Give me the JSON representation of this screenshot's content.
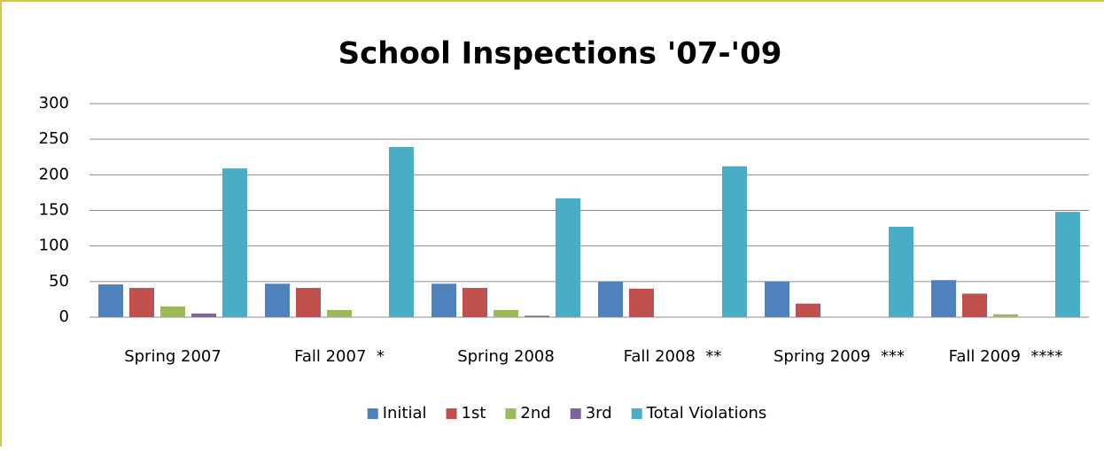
{
  "chart_data": {
    "type": "bar",
    "title": "School Inspections '07-'09",
    "categories": [
      "Spring 2007",
      "Fall 2007  *",
      "Spring 2008",
      "Fall 2008  **",
      "Spring 2009  ***",
      "Fall 2009  ****"
    ],
    "series": [
      {
        "name": "Initial",
        "color": "#4f81bd",
        "values": [
          46,
          47,
          47,
          50,
          50,
          52
        ]
      },
      {
        "name": "1st",
        "color": "#c0504d",
        "values": [
          41,
          41,
          41,
          40,
          19,
          33
        ]
      },
      {
        "name": "2nd",
        "color": "#9bbb59",
        "values": [
          15,
          10,
          10,
          0,
          0,
          4
        ]
      },
      {
        "name": "3rd",
        "color": "#8064a2",
        "values": [
          5,
          0,
          2,
          0,
          0,
          0
        ]
      },
      {
        "name": "Total Violations",
        "color": "#4bacc6",
        "values": [
          209,
          239,
          167,
          212,
          127,
          148
        ]
      }
    ],
    "ylim": [
      0,
      300
    ],
    "yticks": [
      0,
      50,
      100,
      150,
      200,
      250,
      300
    ],
    "grid": true,
    "legend": "bottom"
  }
}
